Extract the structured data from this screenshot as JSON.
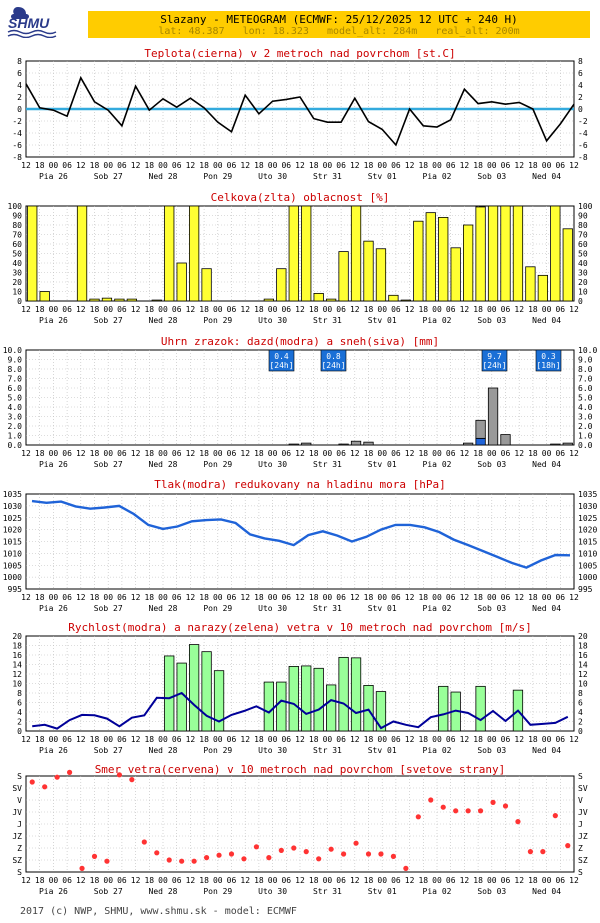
{
  "logo_text": "SHMU",
  "header": {
    "title": "Slazany - METEOGRAM (ECMWF: 25/12/2025 12 UTC + 240 H)",
    "subtitle": "lat: 48.387   lon: 18.323   model_alt: 284m   real_alt: 200m"
  },
  "footer": "2017 (c) NWP, SHMU, www.shmu.sk - model: ECMWF",
  "colors": {
    "header_bg": "#ffcc00",
    "title_red": "#cc0000",
    "precip_label_bg": "#1a6fd6"
  },
  "time_axis": {
    "hour_labels": [
      "12",
      "18",
      "00",
      "06",
      "12",
      "18",
      "00",
      "06",
      "12",
      "18",
      "00",
      "06",
      "12",
      "18",
      "00",
      "06",
      "12",
      "18",
      "00",
      "06",
      "12",
      "18",
      "00",
      "06",
      "12",
      "18",
      "00",
      "06",
      "12",
      "18",
      "00",
      "06",
      "12",
      "18",
      "00",
      "06",
      "12",
      "18",
      "00",
      "06",
      "12"
    ],
    "day_labels": [
      "Pia 26",
      "Sob 27",
      "Ned 28",
      "Pon 29",
      "Uto 30",
      "Str 31",
      "Stv 01",
      "Pia 02",
      "Sob 03",
      "Ned 04"
    ]
  },
  "chart_data": [
    {
      "type": "line",
      "title": "Teplota(cierna) v 2 metroch nad povrchom [st.C]",
      "ylim": [
        -8,
        8
      ],
      "yticks": [
        "8",
        "6",
        "4",
        "2",
        "0",
        "-2",
        "-4",
        "-6",
        "-8"
      ],
      "reference_line": 0,
      "series": [
        {
          "color": "#000000",
          "values": [
            4.2,
            0.2,
            -0.2,
            -1.2,
            5.2,
            1.2,
            -0.2,
            -2.8,
            3.8,
            -0.2,
            1.7,
            0.3,
            1.8,
            0.2,
            -2.2,
            -3.8,
            2.3,
            -0.8,
            1.3,
            1.6,
            2.0,
            -1.6,
            -2.2,
            -2.2,
            1.8,
            -2.1,
            -3.4,
            -6.0,
            0.0,
            -2.8,
            -3.0,
            -1.8,
            3.3,
            0.9,
            1.2,
            0.8,
            1.1,
            0.0,
            -5.3,
            -2.5,
            0.8
          ]
        }
      ]
    },
    {
      "type": "bar",
      "title": "Celkova(zlta) oblacnost [%]",
      "ylim": [
        0,
        100
      ],
      "yticks": [
        "100",
        "90",
        "80",
        "70",
        "60",
        "50",
        "40",
        "30",
        "20",
        "10",
        "0"
      ],
      "series": [
        {
          "color": "#ffff33",
          "values": [
            100,
            10,
            0,
            0,
            100,
            2,
            3,
            2,
            2,
            0,
            1,
            100,
            40,
            100,
            34,
            0,
            0,
            0,
            0,
            2,
            34,
            100,
            100,
            8,
            2,
            52,
            100,
            63,
            55,
            6,
            1,
            84,
            93,
            88,
            56,
            80,
            99,
            100,
            100,
            100,
            36,
            27,
            100,
            76
          ]
        }
      ]
    },
    {
      "type": "bar",
      "title": "Uhrn zrazok: dazd(modra) a sneh(siva) [mm]",
      "ylim": [
        0,
        10
      ],
      "yticks": [
        "10.0",
        "9.0",
        "8.0",
        "7.0",
        "6.0",
        "5.0",
        "4.0",
        "3.0",
        "2.0",
        "1.0",
        "0.0"
      ],
      "series": [
        {
          "name": "dazd",
          "color": "#1f63d8",
          "values": [
            0,
            0,
            0,
            0,
            0,
            0,
            0,
            0,
            0,
            0,
            0,
            0,
            0,
            0,
            0,
            0,
            0,
            0,
            0,
            0,
            0,
            0,
            0,
            0,
            0,
            0,
            0,
            0,
            0,
            0,
            0,
            0,
            0,
            0,
            0,
            0,
            0.7,
            0,
            0,
            0,
            0,
            0,
            0,
            0
          ]
        },
        {
          "name": "sneh",
          "color": "#999999",
          "values": [
            0,
            0,
            0,
            0,
            0,
            0,
            0,
            0,
            0,
            0,
            0,
            0,
            0,
            0,
            0,
            0,
            0,
            0,
            0,
            0,
            0,
            0.1,
            0.2,
            0,
            0,
            0.1,
            0.4,
            0.3,
            0,
            0,
            0,
            0,
            0,
            0,
            0,
            0.2,
            1.9,
            6.0,
            1.1,
            0,
            0,
            0,
            0.1,
            0.2
          ]
        }
      ],
      "summaries": [
        {
          "value": "0.4",
          "period": "[24h]"
        },
        {
          "value": "0.8",
          "period": "[24h]"
        },
        {
          "value": "9.7",
          "period": "[24h]"
        },
        {
          "value": "0.3",
          "period": "[18h]"
        }
      ]
    },
    {
      "type": "line",
      "title": "Tlak(modra) redukovany na hladinu mora [hPa]",
      "ylim": [
        995,
        1035
      ],
      "yticks": [
        "1035",
        "1030",
        "1025",
        "1020",
        "1015",
        "1010",
        "1005",
        "1000",
        "995"
      ],
      "series": [
        {
          "color": "#1f63d8",
          "values": [
            1032,
            1031.3,
            1031.8,
            1029.8,
            1028.8,
            1029.3,
            1030,
            1026.6,
            1022,
            1020.3,
            1021.3,
            1023.5,
            1024,
            1024.3,
            1022.8,
            1018,
            1016.3,
            1015.3,
            1013.5,
            1017.7,
            1019.3,
            1017.5,
            1015,
            1017,
            1020,
            1022,
            1022,
            1021,
            1019,
            1015.8,
            1013.5,
            1011,
            1008.5,
            1006,
            1004,
            1007,
            1009.3,
            1009.2
          ]
        }
      ]
    },
    {
      "type": "bar",
      "title": "Rychlost(modra) a narazy(zelena) vetra v 10 metroch nad povrchom [m/s]",
      "ylim": [
        0,
        20
      ],
      "yticks": [
        "20",
        "18",
        "16",
        "14",
        "12",
        "10",
        "8",
        "6",
        "4",
        "2",
        "0"
      ],
      "series": [
        {
          "name": "narazy",
          "color": "#99ff99",
          "values": [
            0,
            0,
            0,
            0,
            0,
            0,
            0,
            0,
            0,
            0,
            0,
            15.8,
            14.3,
            18.2,
            16.7,
            12.7,
            0,
            0,
            0,
            10.3,
            10.3,
            13.6,
            13.7,
            13.2,
            9.7,
            15.5,
            15.4,
            9.6,
            8.3,
            0,
            0,
            0,
            0,
            9.4,
            8.2,
            0,
            9.4,
            0,
            0,
            8.6,
            0,
            0,
            0,
            0
          ]
        },
        {
          "name": "rychlost",
          "color": "#000099",
          "values": [
            1,
            1.3,
            0.5,
            2.3,
            3.4,
            3.3,
            2.6,
            1,
            2.8,
            3.3,
            7,
            6.9,
            8,
            5.5,
            3.2,
            2,
            3.4,
            4.2,
            5.2,
            3.9,
            6.4,
            5.7,
            3.6,
            4.5,
            6.5,
            5.8,
            3.8,
            4.5,
            0.6,
            2,
            1.3,
            0.8,
            2.9,
            3.5,
            4.3,
            3.8,
            2.3,
            4.2,
            2.1,
            4.3,
            1.3,
            1.5,
            1.7,
            3
          ]
        }
      ]
    },
    {
      "type": "scatter",
      "title": "Smer vetra(cervena) v 10 metroch nad povrchom [svetove strany]",
      "yticks": [
        "S",
        "SV",
        "V",
        "JV",
        "J",
        "JZ",
        "Z",
        "SZ",
        "S"
      ],
      "series": [
        {
          "color": "#ff3333",
          "values": [
            7.5,
            7.1,
            7.9,
            8.3,
            0.3,
            1.3,
            0.9,
            8.1,
            7.7,
            2.5,
            1.6,
            1.0,
            0.9,
            0.9,
            1.2,
            1.4,
            1.5,
            1.1,
            2.1,
            1.2,
            1.8,
            2.0,
            1.7,
            1.1,
            1.9,
            1.5,
            2.4,
            1.5,
            1.5,
            1.3,
            0.3,
            4.6,
            6.0,
            5.4,
            5.1,
            5.1,
            5.1,
            5.8,
            5.5,
            4.2,
            1.7,
            1.7,
            4.7,
            2.2
          ]
        }
      ]
    }
  ]
}
